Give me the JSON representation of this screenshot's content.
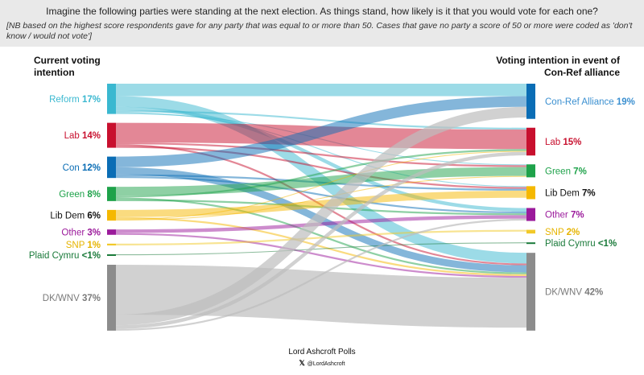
{
  "header": {
    "title": "Imagine the following parties were standing at the next election. As things stand, how likely is it that you would vote for each one?",
    "note": "[NB based on the highest score respondents gave for any party that was equal to or more than 50. Cases that gave no party a score of 50 or more were coded as 'don't know / would not vote']"
  },
  "footer": {
    "name": "Lord Ashcroft Polls",
    "handle": "@LordAshcroft",
    "x_glyph": "𝕏"
  },
  "chart_data": {
    "type": "sankey",
    "left_title": "Current voting intention",
    "right_title": "Voting intention in event of Con-Ref alliance",
    "left_nodes": [
      {
        "name": "Reform",
        "value_label": "17%",
        "value": 17,
        "color": "#3ab8d0",
        "text_color": "#3ab8d0"
      },
      {
        "name": "Lab",
        "value_label": "14%",
        "value": 14,
        "color": "#c8102e",
        "text_color": "#c8102e"
      },
      {
        "name": "Con",
        "value_label": "12%",
        "value": 12,
        "color": "#0a6db5",
        "text_color": "#0a6db5"
      },
      {
        "name": "Green",
        "value_label": "8%",
        "value": 8,
        "color": "#1ea24a",
        "text_color": "#1ea24a"
      },
      {
        "name": "Lib Dem",
        "value_label": "6%",
        "value": 6,
        "color": "#f5b800",
        "text_color": "#111111"
      },
      {
        "name": "Other",
        "value_label": "3%",
        "value": 3,
        "color": "#9b1a9b",
        "text_color": "#9b1a9b"
      },
      {
        "name": "SNP",
        "value_label": "1%",
        "value": 1,
        "color": "#f2c928",
        "text_color": "#e6b400"
      },
      {
        "name": "Plaid Cymru",
        "value_label": "<1%",
        "value": 0.5,
        "color": "#1a7a3a",
        "text_color": "#1a7a3a"
      },
      {
        "name": "DK/WNV",
        "value_label": "37%",
        "value": 37,
        "color": "#8c8c8c",
        "text_color": "#7a7a7a"
      }
    ],
    "right_nodes": [
      {
        "name": "Con-Ref Alliance",
        "value_label": "19%",
        "value": 19,
        "color": "#0a6db5",
        "text_color": "#3a8fd0"
      },
      {
        "name": "Lab",
        "value_label": "15%",
        "value": 15,
        "color": "#c8102e",
        "text_color": "#c8102e"
      },
      {
        "name": "Green",
        "value_label": "7%",
        "value": 7,
        "color": "#1ea24a",
        "text_color": "#1ea24a"
      },
      {
        "name": "Lib Dem",
        "value_label": "7%",
        "value": 7,
        "color": "#f5b800",
        "text_color": "#111111"
      },
      {
        "name": "Other",
        "value_label": "7%",
        "value": 7,
        "color": "#9b1a9b",
        "text_color": "#9b1a9b"
      },
      {
        "name": "SNP",
        "value_label": "2%",
        "value": 2,
        "color": "#f2c928",
        "text_color": "#e6b400"
      },
      {
        "name": "Plaid Cymru",
        "value_label": "<1%",
        "value": 0.5,
        "color": "#1a7a3a",
        "text_color": "#1a7a3a"
      },
      {
        "name": "DK/WNV",
        "value_label": "42%",
        "value": 42,
        "color": "#8c8c8c",
        "text_color": "#7a7a7a"
      }
    ],
    "flows": [
      {
        "from": "Reform",
        "to": "Con-Ref Alliance",
        "value": 7
      },
      {
        "from": "Reform",
        "to": "DK/WNV",
        "value": 6
      },
      {
        "from": "Reform",
        "to": "Other",
        "value": 2
      },
      {
        "from": "Reform",
        "to": "Lab",
        "value": 1
      },
      {
        "from": "Reform",
        "to": "Lib Dem",
        "value": 0.5
      },
      {
        "from": "Reform",
        "to": "Green",
        "value": 0.5
      },
      {
        "from": "Lab",
        "to": "Lab",
        "value": 11
      },
      {
        "from": "Lab",
        "to": "Green",
        "value": 1
      },
      {
        "from": "Lab",
        "to": "DK/WNV",
        "value": 1
      },
      {
        "from": "Lab",
        "to": "Lib Dem",
        "value": 1
      },
      {
        "from": "Con",
        "to": "Con-Ref Alliance",
        "value": 6
      },
      {
        "from": "Con",
        "to": "DK/WNV",
        "value": 4
      },
      {
        "from": "Con",
        "to": "Lib Dem",
        "value": 1
      },
      {
        "from": "Con",
        "to": "Other",
        "value": 1
      },
      {
        "from": "Green",
        "to": "Green",
        "value": 5
      },
      {
        "from": "Green",
        "to": "Lab",
        "value": 1
      },
      {
        "from": "Green",
        "to": "DK/WNV",
        "value": 1
      },
      {
        "from": "Green",
        "to": "Other",
        "value": 1
      },
      {
        "from": "Lib Dem",
        "to": "Lib Dem",
        "value": 4
      },
      {
        "from": "Lib Dem",
        "to": "DK/WNV",
        "value": 1
      },
      {
        "from": "Lib Dem",
        "to": "Lab",
        "value": 0.5
      },
      {
        "from": "Lib Dem",
        "to": "Green",
        "value": 0.5
      },
      {
        "from": "Other",
        "to": "Other",
        "value": 2
      },
      {
        "from": "Other",
        "to": "DK/WNV",
        "value": 1
      },
      {
        "from": "SNP",
        "to": "SNP",
        "value": 1
      },
      {
        "from": "Plaid Cymru",
        "to": "Plaid Cymru",
        "value": 0.5
      },
      {
        "from": "DK/WNV",
        "to": "DK/WNV",
        "value": 28
      },
      {
        "from": "DK/WNV",
        "to": "Con-Ref Alliance",
        "value": 6
      },
      {
        "from": "DK/WNV",
        "to": "Lab",
        "value": 2
      },
      {
        "from": "DK/WNV",
        "to": "Other",
        "value": 1
      }
    ]
  }
}
